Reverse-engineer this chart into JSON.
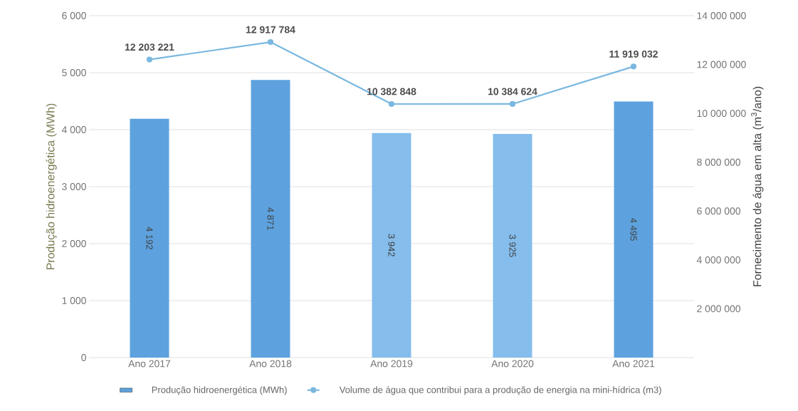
{
  "chart_data": {
    "type": "bar",
    "categories": [
      "Ano 2017",
      "Ano 2018",
      "Ano 2019",
      "Ano 2020",
      "Ano 2021"
    ],
    "ylabel": "Produção hidroenergética (MWh)",
    "y2label": "Fornecimento de água em alta (m$^{3}$/ano)",
    "ylim": [
      0,
      6000
    ],
    "yticks": [
      0,
      {
        "value": 1000,
        "label": "1 000"
      },
      {
        "value": 2000,
        "label": "2 000"
      },
      {
        "value": 3000,
        "label": "3 000"
      },
      {
        "value": 4000,
        "label": "4 000"
      },
      {
        "value": 5000,
        "label": "5 000"
      },
      {
        "value": 6000,
        "label": "6 000"
      }
    ],
    "y2lim": [
      0,
      14000000
    ],
    "y2ticks": [
      {
        "value": 2000000,
        "label": "2 000 000"
      },
      {
        "value": 4000000,
        "label": "4 000 000"
      },
      {
        "value": 6000000,
        "label": "6 000 000"
      },
      {
        "value": 8000000,
        "label": "8 000 000"
      },
      {
        "value": 10000000,
        "label": "10 000 000"
      },
      {
        "value": 12000000,
        "label": "12 000 000"
      },
      {
        "value": 14000000,
        "label": "14 000 000"
      }
    ],
    "grid": "y",
    "legend": "bottom",
    "series": [
      {
        "name": "Produção hidroenergética (MWh)",
        "colors": [
          "#5da2de",
          "#5da2de",
          "#85bdec",
          "#85bdec",
          "#5da2de"
        ],
        "values": [
          4192,
          4871,
          3942,
          3925,
          4495
        ],
        "value_labels": [
          "4 192",
          "4 871",
          "3 942",
          "3 925",
          "4 495"
        ]
      },
      {
        "name": "Volume de água que contribui para a produção de energia na mini-hídrica (m3)",
        "type": "line",
        "axis": "y2",
        "color": "#7ab8e0",
        "marker": "circle",
        "values": [
          12203221,
          12917784,
          10382848,
          10384624,
          11919032
        ],
        "value_labels": [
          "12 203 221",
          "12 917 784",
          "10 382 848",
          "10 384 624",
          "11 919 032"
        ]
      }
    ]
  }
}
